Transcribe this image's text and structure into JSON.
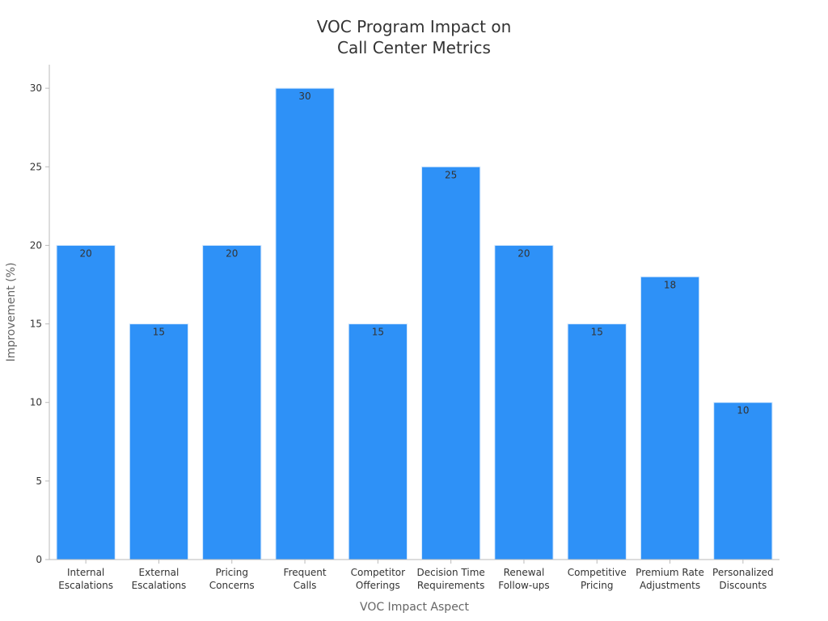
{
  "chart_data": {
    "type": "bar",
    "title_lines": [
      "VOC Program Impact on",
      "Call Center Metrics"
    ],
    "xlabel": "VOC Impact Aspect",
    "ylabel": "Improvement (%)",
    "categories": [
      [
        "Internal",
        "Escalations"
      ],
      [
        "External",
        "Escalations"
      ],
      [
        "Pricing",
        "Concerns"
      ],
      [
        "Frequent",
        "Calls"
      ],
      [
        "Competitor",
        "Offerings"
      ],
      [
        "Decision Time",
        "Requirements"
      ],
      [
        "Renewal",
        "Follow-ups"
      ],
      [
        "Competitive",
        "Pricing"
      ],
      [
        "Premium Rate",
        "Adjustments"
      ],
      [
        "Personalized",
        "Discounts"
      ]
    ],
    "values": [
      20,
      15,
      20,
      30,
      15,
      25,
      20,
      15,
      18,
      10
    ],
    "ylim": [
      0,
      31.5
    ],
    "yticks": [
      0,
      5,
      10,
      15,
      20,
      25,
      30
    ],
    "grid": false,
    "legend": "none",
    "colors": {
      "bar": "#2E91F7",
      "bar_edge": "#D6E9FD",
      "axis": "#BBBBBB",
      "text": "#333333",
      "axis_title": "#666666"
    }
  }
}
